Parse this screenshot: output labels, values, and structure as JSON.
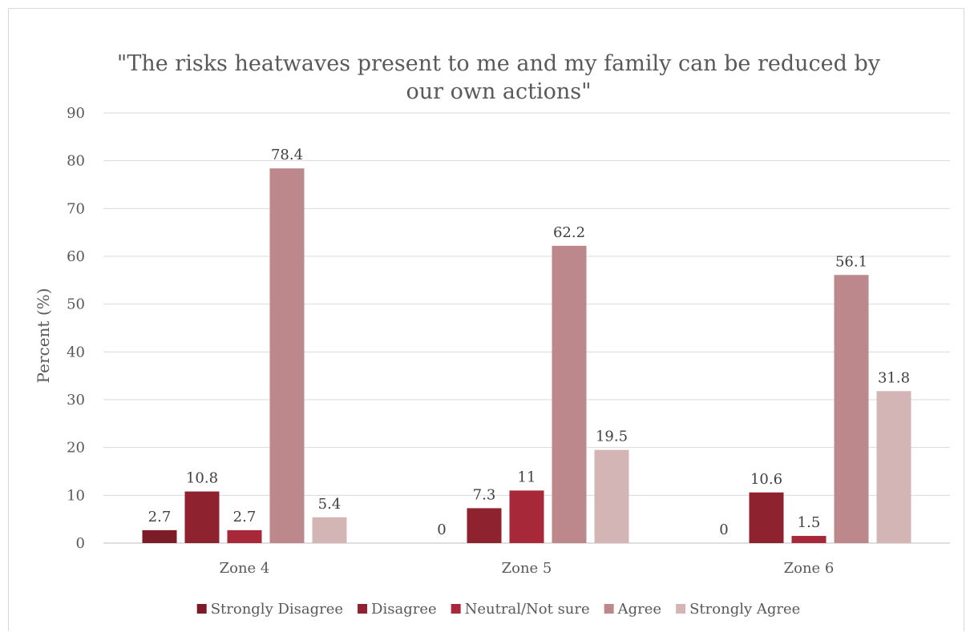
{
  "chart_data": {
    "type": "bar",
    "title_lines": [
      "\"The risks heatwaves present to me and my family can be reduced by",
      "our own actions\""
    ],
    "xlabel": "",
    "ylabel": "Percent (%)",
    "ylim": [
      0,
      90
    ],
    "yticks": [
      0,
      10,
      20,
      30,
      40,
      50,
      60,
      70,
      80,
      90
    ],
    "grid": true,
    "legend_position": "bottom",
    "categories": [
      "Zone 4",
      "Zone 5",
      "Zone 6"
    ],
    "series": [
      {
        "name": "Strongly Disagree",
        "color": "#7b1c27",
        "values": [
          2.7,
          0,
          0
        ]
      },
      {
        "name": "Disagree",
        "color": "#8e222f",
        "values": [
          10.8,
          7.3,
          10.6
        ]
      },
      {
        "name": "Neutral/Not sure",
        "color": "#a72939",
        "values": [
          2.7,
          11,
          1.5
        ]
      },
      {
        "name": "Agree",
        "color": "#bd888b",
        "values": [
          78.4,
          62.2,
          56.1
        ]
      },
      {
        "name": "Strongly Agree",
        "color": "#d4b5b6",
        "values": [
          5.4,
          19.5,
          31.8
        ]
      }
    ],
    "data_labels": true
  }
}
